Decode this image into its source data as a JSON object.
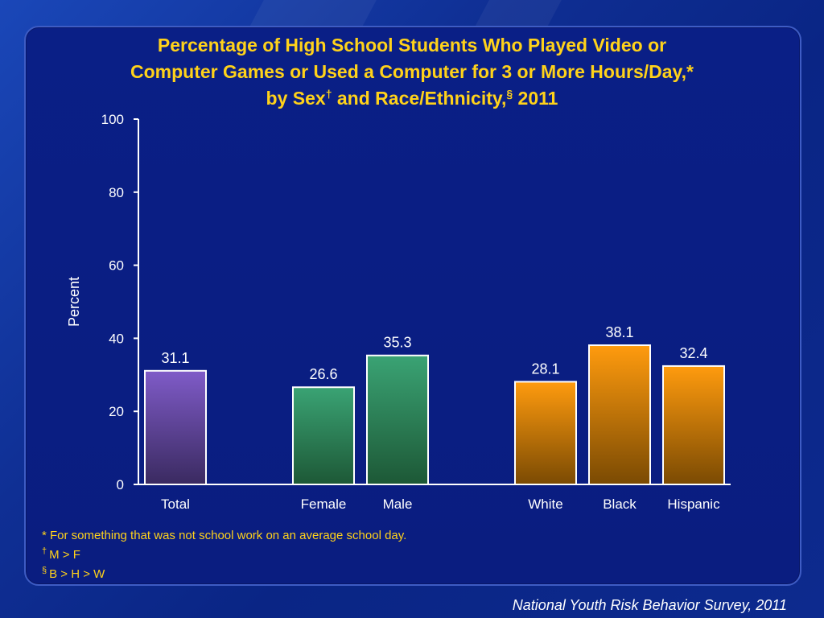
{
  "title": {
    "line1": "Percentage of High School Students Who Played Video or",
    "line2": "Computer Games or Used a Computer for 3 or More Hours/Day,*",
    "line3_a": "by Sex",
    "line3_dagger": "†",
    "line3_b": " and Race/Ethnicity,",
    "line3_section": "§",
    "line3_c": " 2011"
  },
  "chart_data": {
    "type": "bar",
    "categories": [
      "Total",
      "Female",
      "Male",
      "White",
      "Black",
      "Hispanic"
    ],
    "values": [
      31.1,
      26.6,
      35.3,
      28.1,
      38.1,
      32.4
    ],
    "value_labels": [
      "31.1",
      "26.6",
      "35.3",
      "28.1",
      "38.1",
      "32.4"
    ],
    "groups": [
      [
        "Total"
      ],
      [
        "Female",
        "Male"
      ],
      [
        "White",
        "Black",
        "Hispanic"
      ]
    ],
    "bar_colors": {
      "Total": [
        "#7f5bc8",
        "#3a2a60"
      ],
      "Female": [
        "#3aa374",
        "#1d5836"
      ],
      "Male": [
        "#3aa374",
        "#1d5836"
      ],
      "White": [
        "#ff9b0e",
        "#7a4a03"
      ],
      "Black": [
        "#ff9b0e",
        "#7a4a03"
      ],
      "Hispanic": [
        "#ff9b0e",
        "#7a4a03"
      ]
    },
    "ylabel": "Percent",
    "xlabel": "",
    "ylim": [
      0,
      100
    ],
    "yticks": [
      0,
      20,
      40,
      60,
      80,
      100
    ],
    "grid": false
  },
  "footnotes": {
    "note1": "* For something that was not school work on an average school day.",
    "note2_mark": "†",
    "note2_text": "M > F",
    "note3_mark": "§",
    "note3_text": "B > H > W"
  },
  "source": "National Youth Risk Behavior Survey, 2011",
  "colors": {
    "title": "#ffd21a",
    "background": "#0a1f86",
    "axis": "#ffffff"
  }
}
